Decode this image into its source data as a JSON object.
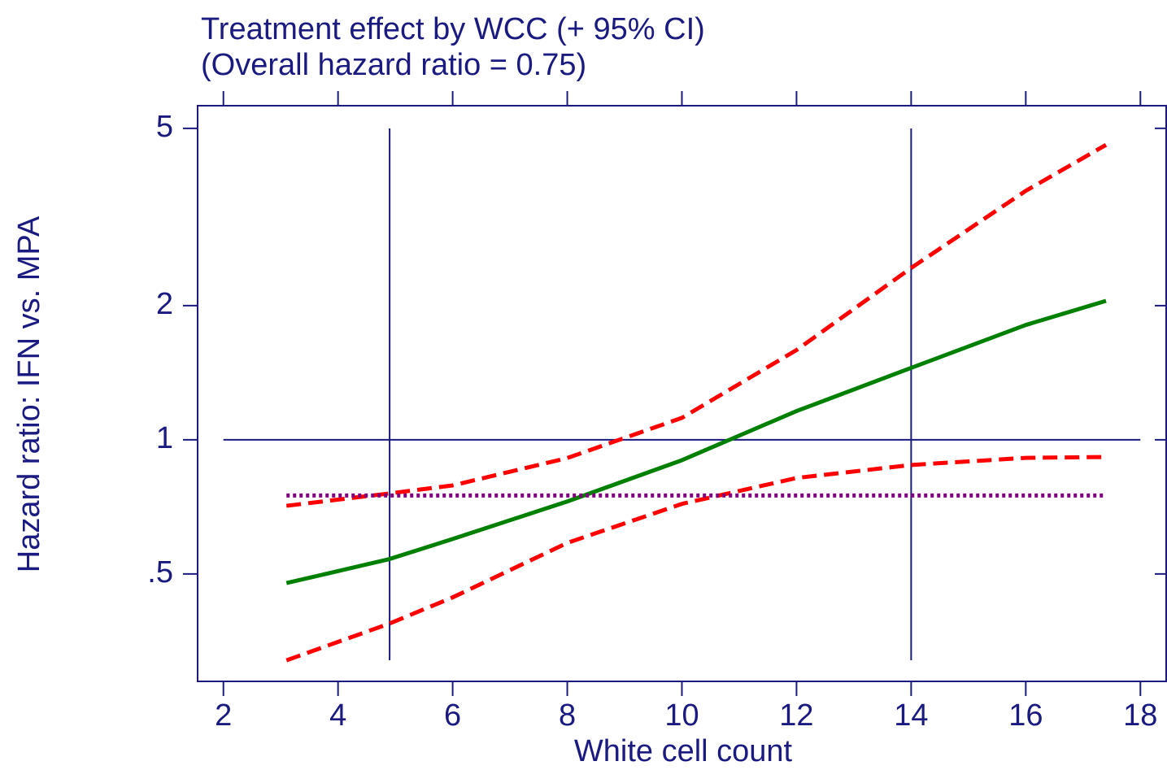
{
  "chart_data": {
    "type": "line",
    "title": "Treatment effect by WCC (+ 95% CI)",
    "subtitle": "(Overall hazard ratio = 0.75)",
    "x_label": "White cell count",
    "y_label": "Hazard ratio: IFN vs. MPA",
    "log_y": true,
    "x": [
      3.1,
      4.9,
      6,
      8,
      10,
      12,
      14,
      16,
      17.4
    ],
    "series": [
      {
        "color": "#ff0000",
        "style": "dashed",
        "values": [
          0.711,
          0.758,
          0.79,
          0.91,
          1.12,
          1.59,
          2.43,
          3.62,
          4.59
        ]
      },
      {
        "color": "#ff0000",
        "style": "dashed",
        "values": [
          0.32,
          0.387,
          0.443,
          0.587,
          0.718,
          0.821,
          0.878,
          0.911,
          0.915
        ]
      },
      {
        "color": "#008000",
        "style": "solid",
        "values": [
          0.477,
          0.54,
          0.599,
          0.727,
          0.9,
          1.16,
          1.45,
          1.81,
          2.05
        ]
      },
      {
        "color": "#800080",
        "style": "dotted",
        "values": [
          0.75,
          0.75,
          0.75,
          0.75,
          0.75,
          0.75,
          0.75,
          0.75,
          0.75
        ]
      }
    ],
    "hlines": [
      1
    ],
    "vlines": [
      4.9,
      14
    ],
    "xlim": [
      1.55,
      18.45
    ],
    "ylim": [
      0.287,
      5.62
    ],
    "xticks": [
      2,
      4,
      6,
      8,
      10,
      12,
      14,
      16,
      18
    ],
    "yticks": [
      {
        "value": 0.5,
        "label": ".5"
      },
      1,
      2,
      5
    ]
  }
}
